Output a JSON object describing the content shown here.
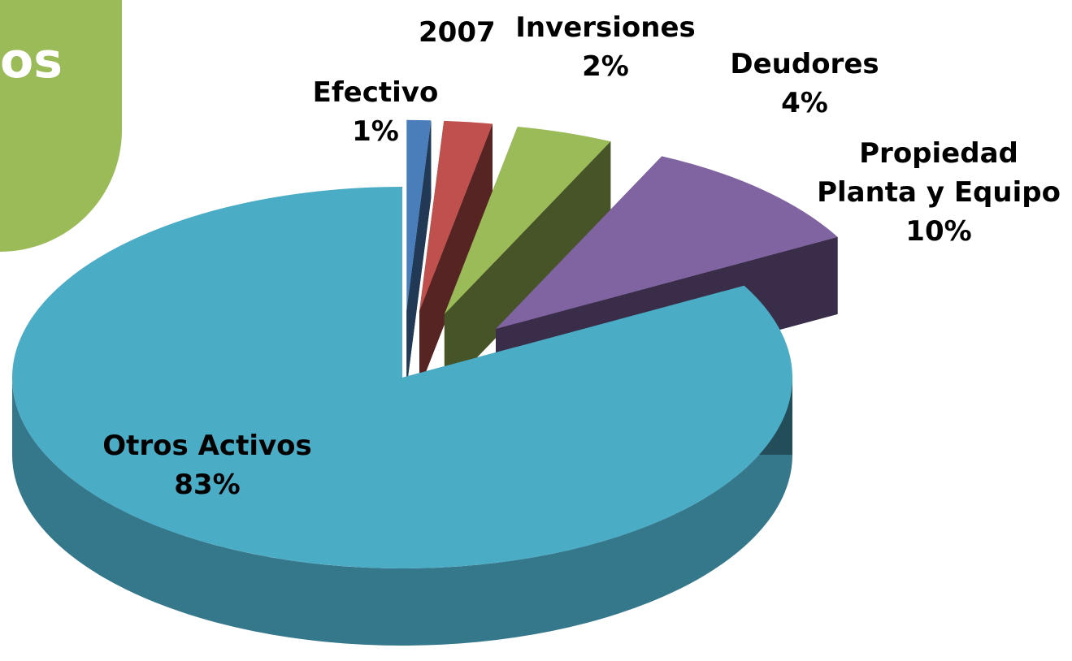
{
  "header": {
    "text": "os"
  },
  "chart_data": {
    "type": "pie3d",
    "title": "2007",
    "categories": [
      "Efectivo",
      "Inversiones",
      "Deudores",
      "Propiedad Planta y Equipo",
      "Otros Activos"
    ],
    "values": [
      1,
      2,
      4,
      10,
      83
    ],
    "value_labels": [
      "1%",
      "2%",
      "4%",
      "10%",
      "83%"
    ],
    "colors": [
      "#4a7ebb",
      "#c0504d",
      "#9bbb59",
      "#8064a2",
      "#4bacc6"
    ]
  }
}
